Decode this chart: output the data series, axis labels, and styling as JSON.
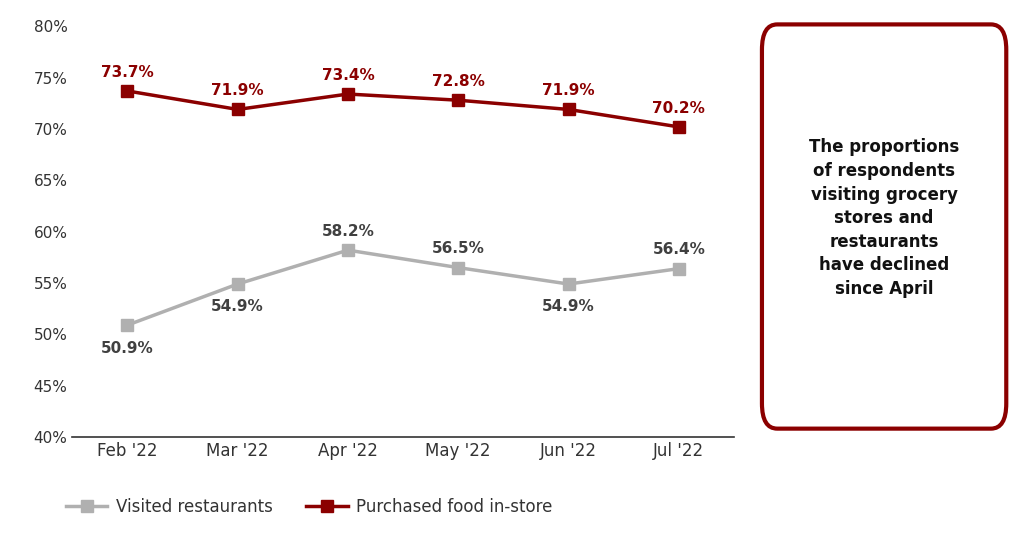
{
  "categories": [
    "Feb '22",
    "Mar '22",
    "Apr '22",
    "May '22",
    "Jun '22",
    "Jul '22"
  ],
  "restaurants": [
    50.9,
    54.9,
    58.2,
    56.5,
    54.9,
    56.4
  ],
  "food_instore": [
    73.7,
    71.9,
    73.4,
    72.8,
    71.9,
    70.2
  ],
  "restaurants_labels": [
    "50.9%",
    "54.9%",
    "58.2%",
    "56.5%",
    "54.9%",
    "56.4%"
  ],
  "food_labels": [
    "73.7%",
    "71.9%",
    "73.4%",
    "72.8%",
    "71.9%",
    "70.2%"
  ],
  "restaurant_color": "#b0b0b0",
  "food_color": "#8b0000",
  "ylim": [
    40,
    81
  ],
  "yticks": [
    40,
    45,
    50,
    55,
    60,
    65,
    70,
    75,
    80
  ],
  "ytick_labels": [
    "40%",
    "45%",
    "50%",
    "55%",
    "60%",
    "65%",
    "70%",
    "75%",
    "80%"
  ],
  "annotation_text": "The proportions\nof respondents\nvisiting grocery\nstores and\nrestaurants\nhave declined\nsince April",
  "annotation_box_color": "#8b0000",
  "legend_restaurant": "Visited restaurants",
  "legend_food": "Purchased food in-store",
  "background_color": "#ffffff",
  "line_width": 2.5,
  "marker_size": 8
}
